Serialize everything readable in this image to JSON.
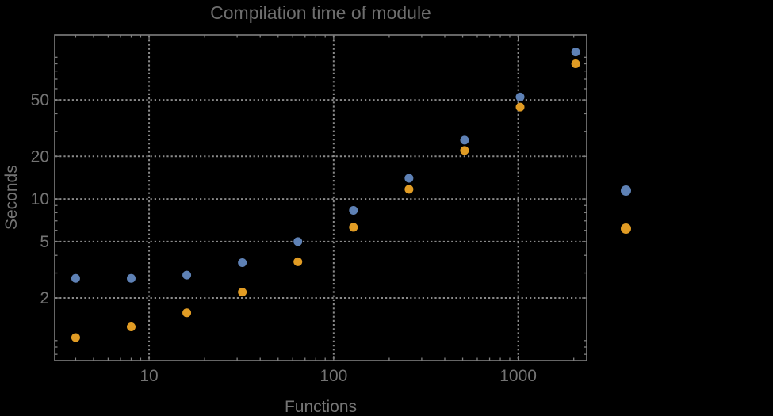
{
  "chart_data": {
    "type": "scatter",
    "title": "Compilation time of module",
    "xlabel": "Functions",
    "ylabel": "Seconds",
    "x_scale": "log",
    "y_scale": "log",
    "xlim": [
      3.08,
      2350
    ],
    "ylim": [
      0.723,
      144
    ],
    "grid": "dotted gridlines at labeled major ticks only",
    "legend_position": "right of frame, marker dots only (no visible text)",
    "x": [
      4,
      8,
      16,
      32,
      64,
      128,
      256,
      512,
      1024,
      2048
    ],
    "series": [
      {
        "name": "series-1-blue",
        "color": "#5E81B5",
        "values": [
          2.75,
          2.75,
          2.9,
          3.55,
          5.0,
          8.3,
          14.0,
          26.0,
          52.5,
          109
        ]
      },
      {
        "name": "series-2-orange",
        "color": "#E19C24",
        "values": [
          1.05,
          1.25,
          1.57,
          2.2,
          3.6,
          6.3,
          11.7,
          22.0,
          44.5,
          90
        ]
      }
    ],
    "x_tick_labels": [
      {
        "value": 10,
        "label": "10"
      },
      {
        "value": 100,
        "label": "100"
      },
      {
        "value": 1000,
        "label": "1000"
      }
    ],
    "y_tick_labels": [
      {
        "value": 2,
        "label": "2"
      },
      {
        "value": 5,
        "label": "5"
      },
      {
        "value": 10,
        "label": "10"
      },
      {
        "value": 20,
        "label": "20"
      },
      {
        "value": 50,
        "label": "50"
      }
    ],
    "x_minor_ticks": [
      4,
      5,
      6,
      7,
      8,
      9,
      20,
      30,
      40,
      50,
      60,
      70,
      80,
      90,
      200,
      300,
      400,
      500,
      600,
      700,
      800,
      900,
      2000
    ],
    "y_minor_ticks": [
      0.8,
      0.9,
      1,
      3,
      4,
      6,
      7,
      8,
      9,
      30,
      40,
      60,
      70,
      80,
      90,
      100
    ],
    "colors": {
      "background": "#000000",
      "frame": "#7f7f7f",
      "grid": "#8a8a8a",
      "title_text": "#6e6e6e",
      "label_text": "#747474"
    }
  }
}
